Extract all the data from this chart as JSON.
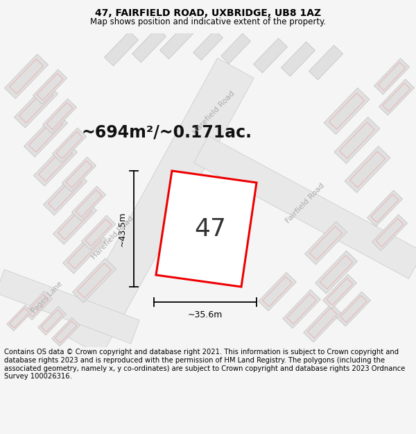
{
  "title": "47, FAIRFIELD ROAD, UXBRIDGE, UB8 1AZ",
  "subtitle": "Map shows position and indicative extent of the property.",
  "area_label": "~694m²/~0.171ac.",
  "number_label": "47",
  "dim_vertical": "~43.5m",
  "dim_horizontal": "~35.6m",
  "road_label_harefield": "Harefield Road",
  "road_label_fairfield": "Fairfield Road",
  "road_label_pages": "Pages Lane",
  "footer": "Contains OS data © Crown copyright and database right 2021. This information is subject to Crown copyright and database rights 2023 and is reproduced with the permission of HM Land Registry. The polygons (including the associated geometry, namely x, y co-ordinates) are subject to Crown copyright and database rights 2023 Ordnance Survey 100026316.",
  "bg_color": "#f5f5f5",
  "map_bg": "#f8f8f8",
  "property_color": "#ee0000",
  "bldg_fill": "#e0e0e0",
  "bldg_edge": "#c0c0c0",
  "bldg_inner": "#f0a0a0",
  "road_fill": "#e8e8e8",
  "title_fontsize": 10,
  "subtitle_fontsize": 8.5,
  "footer_fontsize": 7.2,
  "area_fontsize": 17,
  "num_fontsize": 26,
  "dim_fontsize": 9,
  "road_fontsize": 8
}
